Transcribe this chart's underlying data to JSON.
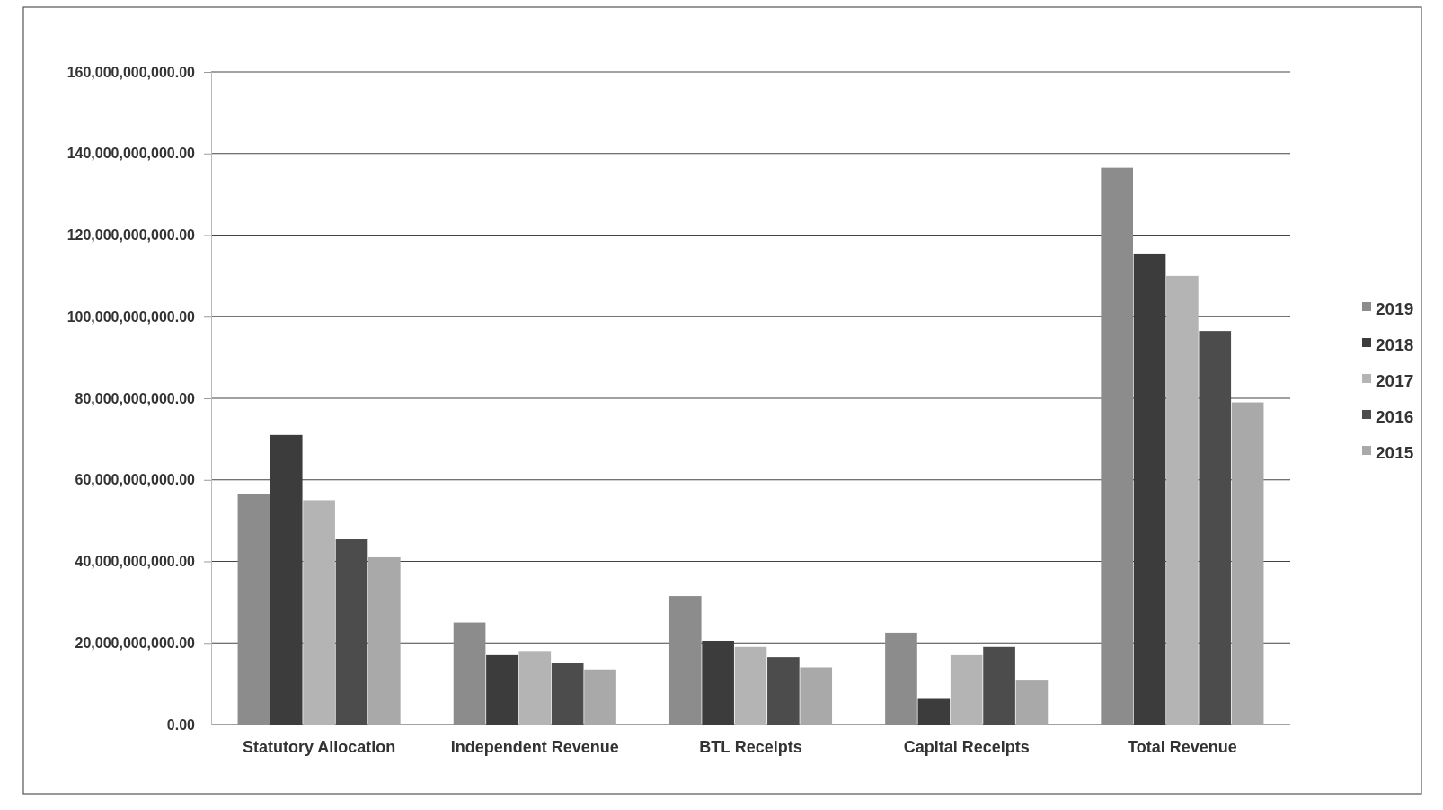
{
  "chart_data": {
    "type": "bar",
    "categories": [
      "Statutory Allocation",
      "Independent Revenue",
      "BTL Receipts",
      "Capital Receipts",
      "Total Revenue"
    ],
    "series": [
      {
        "name": "2019",
        "color": "#8c8c8c",
        "values": [
          56500000000,
          25000000000,
          31500000000,
          22500000000,
          136500000000
        ]
      },
      {
        "name": "2018",
        "color": "#3c3c3c",
        "values": [
          71000000000,
          17000000000,
          20500000000,
          6500000000,
          115500000000
        ]
      },
      {
        "name": "2017",
        "color": "#b4b4b4",
        "values": [
          55000000000,
          18000000000,
          19000000000,
          17000000000,
          110000000000
        ]
      },
      {
        "name": "2016",
        "color": "#4c4c4c",
        "values": [
          45500000000,
          15000000000,
          16500000000,
          19000000000,
          96500000000
        ]
      },
      {
        "name": "2015",
        "color": "#a9a9a9",
        "values": [
          41000000000,
          13500000000,
          14000000000,
          11000000000,
          79000000000
        ]
      }
    ],
    "ylim": [
      0,
      160000000000
    ],
    "yticks": [
      {
        "value": 0,
        "label": "0.00"
      },
      {
        "value": 20000000000,
        "label": "20,000,000,000.00"
      },
      {
        "value": 40000000000,
        "label": "40,000,000,000.00"
      },
      {
        "value": 60000000000,
        "label": "60,000,000,000.00"
      },
      {
        "value": 80000000000,
        "label": "80,000,000,000.00"
      },
      {
        "value": 100000000000,
        "label": "100,000,000,000.00"
      },
      {
        "value": 120000000000,
        "label": "120,000,000,000.00"
      },
      {
        "value": 140000000000,
        "label": "140,000,000,000.00"
      },
      {
        "value": 160000000000,
        "label": "160,000,000,000.00"
      }
    ],
    "grid": "y",
    "legend": "right"
  }
}
